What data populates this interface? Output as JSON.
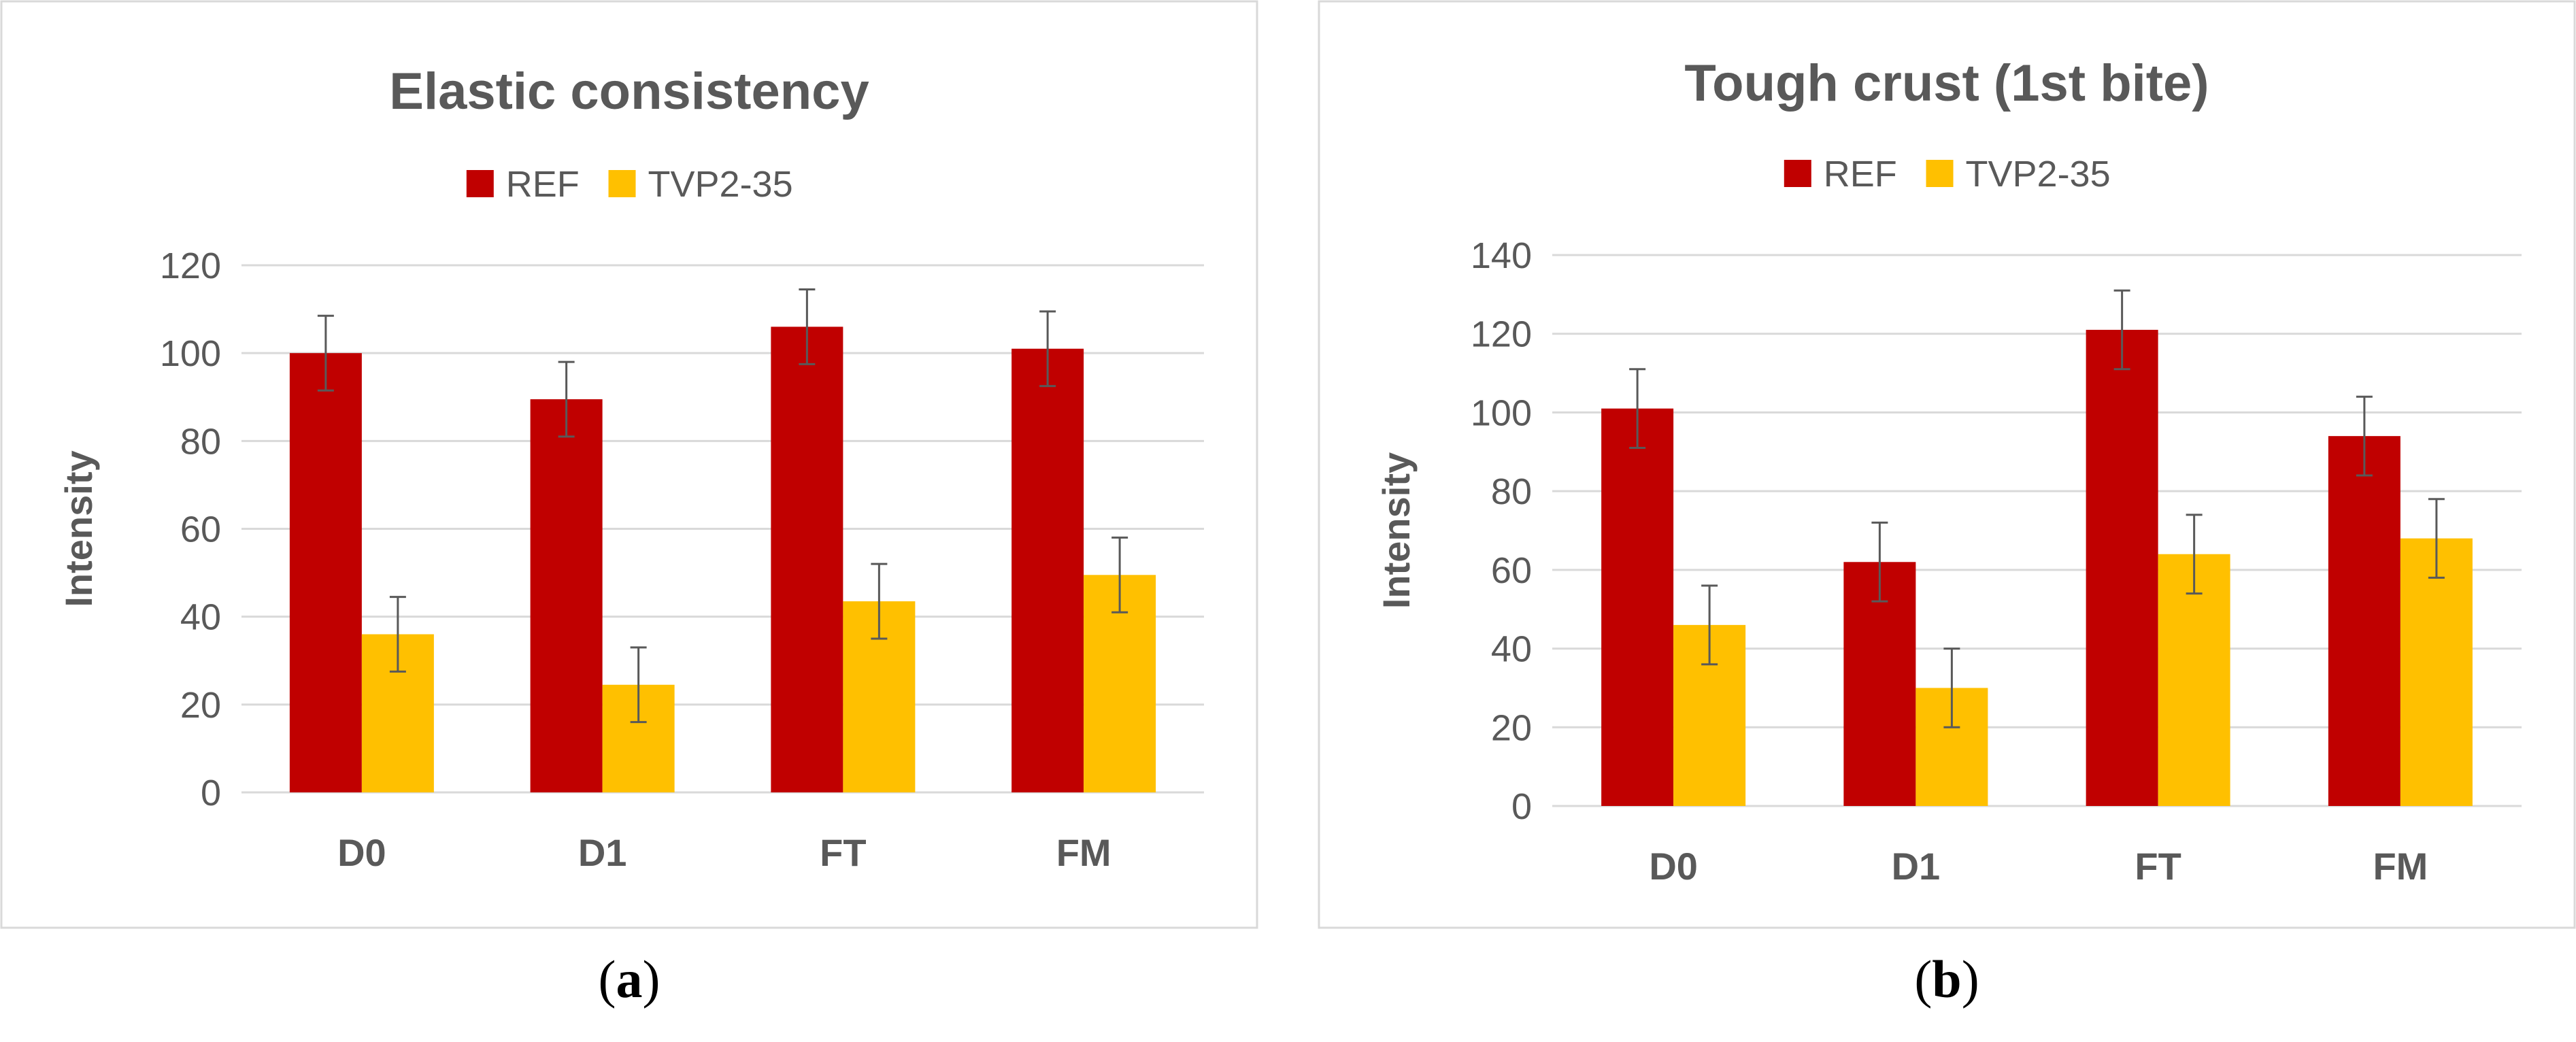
{
  "colors": {
    "ref": "#C00000",
    "tvp": "#FFC000",
    "grid": "#D9D9D9",
    "text": "#595959",
    "border": "#D9D9D9",
    "error": "#595959"
  },
  "chart_data": [
    {
      "type": "bar",
      "title": "Elastic consistency",
      "categories": [
        "D0",
        "D1",
        "FT",
        "FM"
      ],
      "series": [
        {
          "name": "REF",
          "values": [
            100,
            89.5,
            106,
            101
          ],
          "errors": [
            8.5,
            8.5,
            8.5,
            8.5
          ]
        },
        {
          "name": "TVP2-35",
          "values": [
            36,
            24.5,
            43.5,
            49.5
          ],
          "errors": [
            8.5,
            8.5,
            8.5,
            8.5
          ]
        }
      ],
      "xlabel": "",
      "ylabel": "Intensity",
      "ylim": [
        0,
        120
      ],
      "yticks": [
        0,
        20,
        40,
        60,
        80,
        100,
        120
      ],
      "grid": true,
      "legend": "top-center",
      "caption_label": "a"
    },
    {
      "type": "bar",
      "title": "Tough crust (1st bite)",
      "categories": [
        "D0",
        "D1",
        "FT",
        "FM"
      ],
      "series": [
        {
          "name": "REF",
          "values": [
            101,
            62,
            121,
            94
          ],
          "errors": [
            10,
            10,
            10,
            10
          ]
        },
        {
          "name": "TVP2-35",
          "values": [
            46,
            30,
            64,
            68
          ],
          "errors": [
            10,
            10,
            10,
            10
          ]
        }
      ],
      "xlabel": "",
      "ylabel": "Intensity",
      "ylim": [
        0,
        140
      ],
      "yticks": [
        0,
        20,
        40,
        60,
        80,
        100,
        120,
        140
      ],
      "grid": true,
      "legend": "top-center",
      "caption_label": "b"
    }
  ]
}
